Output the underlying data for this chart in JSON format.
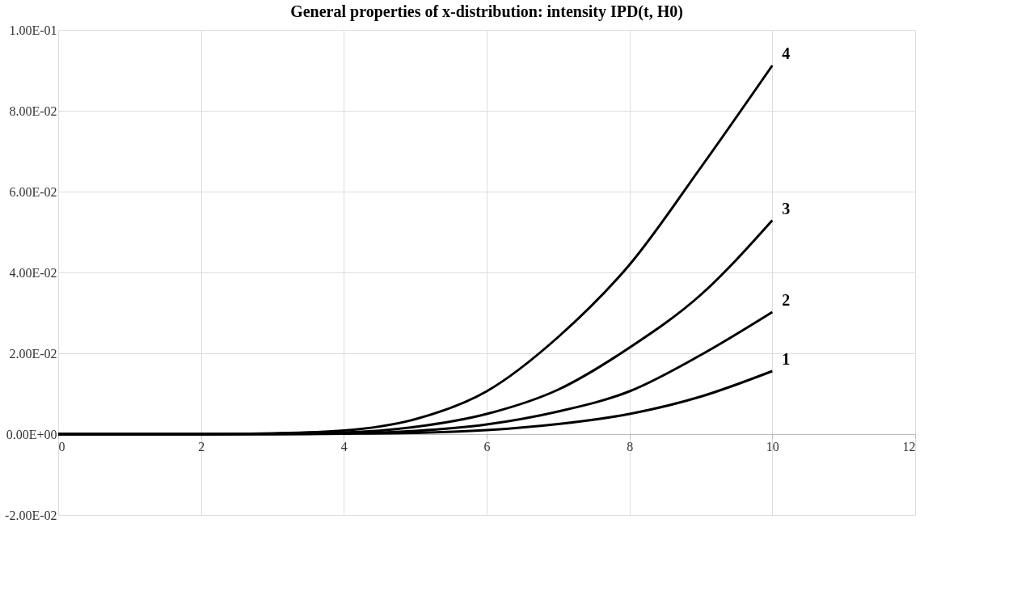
{
  "chart_data": {
    "type": "line",
    "title": "General properties of x-distribution: intensity IPD(t, H0)",
    "x": [
      0,
      1,
      2,
      3,
      4,
      5,
      6,
      7,
      8,
      9,
      10
    ],
    "series": [
      {
        "name": "1",
        "color": "#000000",
        "values": [
          0,
          0,
          0,
          0,
          0.0001,
          0.0003,
          0.001,
          0.0025,
          0.005,
          0.0093,
          0.0156
        ]
      },
      {
        "name": "2",
        "color": "#000000",
        "values": [
          0,
          0,
          0,
          0,
          0.0002,
          0.0008,
          0.0024,
          0.0056,
          0.0106,
          0.0196,
          0.0302
        ]
      },
      {
        "name": "3",
        "color": "#000000",
        "values": [
          0,
          0,
          0,
          0.0001,
          0.0004,
          0.0018,
          0.005,
          0.011,
          0.0214,
          0.0345,
          0.0529
        ]
      },
      {
        "name": "4",
        "color": "#000000",
        "values": [
          0,
          0,
          0,
          0.0002,
          0.0009,
          0.0037,
          0.0106,
          0.024,
          0.0419,
          0.066,
          0.0912
        ]
      }
    ],
    "xlim": [
      0,
      12
    ],
    "xticks": [
      0,
      2,
      4,
      6,
      8,
      10,
      12
    ],
    "ylim": [
      -0.02,
      0.1
    ],
    "yticks": [
      {
        "value": -0.02,
        "label": "-2.00E-02"
      },
      {
        "value": 0,
        "label": "0.00E+00"
      },
      {
        "value": 0.02,
        "label": "2.00E-02"
      },
      {
        "value": 0.04,
        "label": "4.00E-02"
      },
      {
        "value": 0.06,
        "label": "6.00E-02"
      },
      {
        "value": 0.08,
        "label": "8.00E-02"
      },
      {
        "value": 0.1,
        "label": "1.00E-01"
      }
    ],
    "grid": true,
    "marker": "none",
    "line_style": "solid"
  }
}
